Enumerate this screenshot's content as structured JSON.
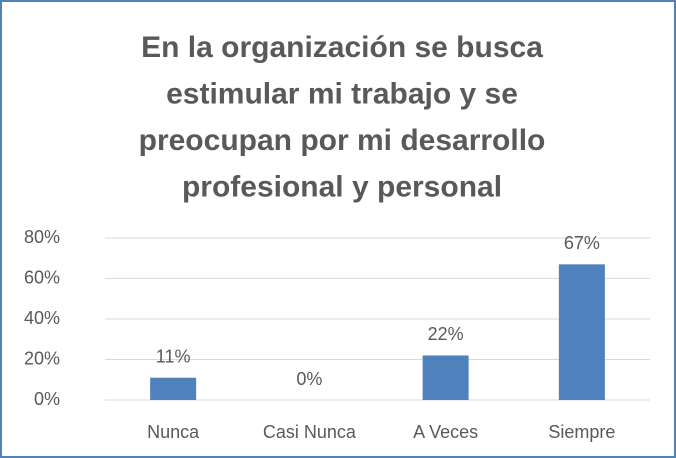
{
  "chart_data": {
    "type": "bar",
    "title": [
      "En la organización se busca",
      "estimular mi trabajo y se",
      "preocupan por mi desarrollo",
      "profesional y personal"
    ],
    "categories": [
      "Nunca",
      "Casi Nunca",
      "A Veces",
      "Siempre"
    ],
    "values": [
      11,
      0,
      22,
      67
    ],
    "value_labels": [
      "11%",
      "0%",
      "22%",
      "67%"
    ],
    "color": "#4f81bd",
    "ylim": [
      0,
      80
    ],
    "yticks": [
      {
        "value": 0,
        "label": "0%"
      },
      {
        "value": 20,
        "label": "20%"
      },
      {
        "value": 40,
        "label": "40%"
      },
      {
        "value": 60,
        "label": "60%"
      },
      {
        "value": 80,
        "label": "80%"
      }
    ],
    "grid": true
  }
}
